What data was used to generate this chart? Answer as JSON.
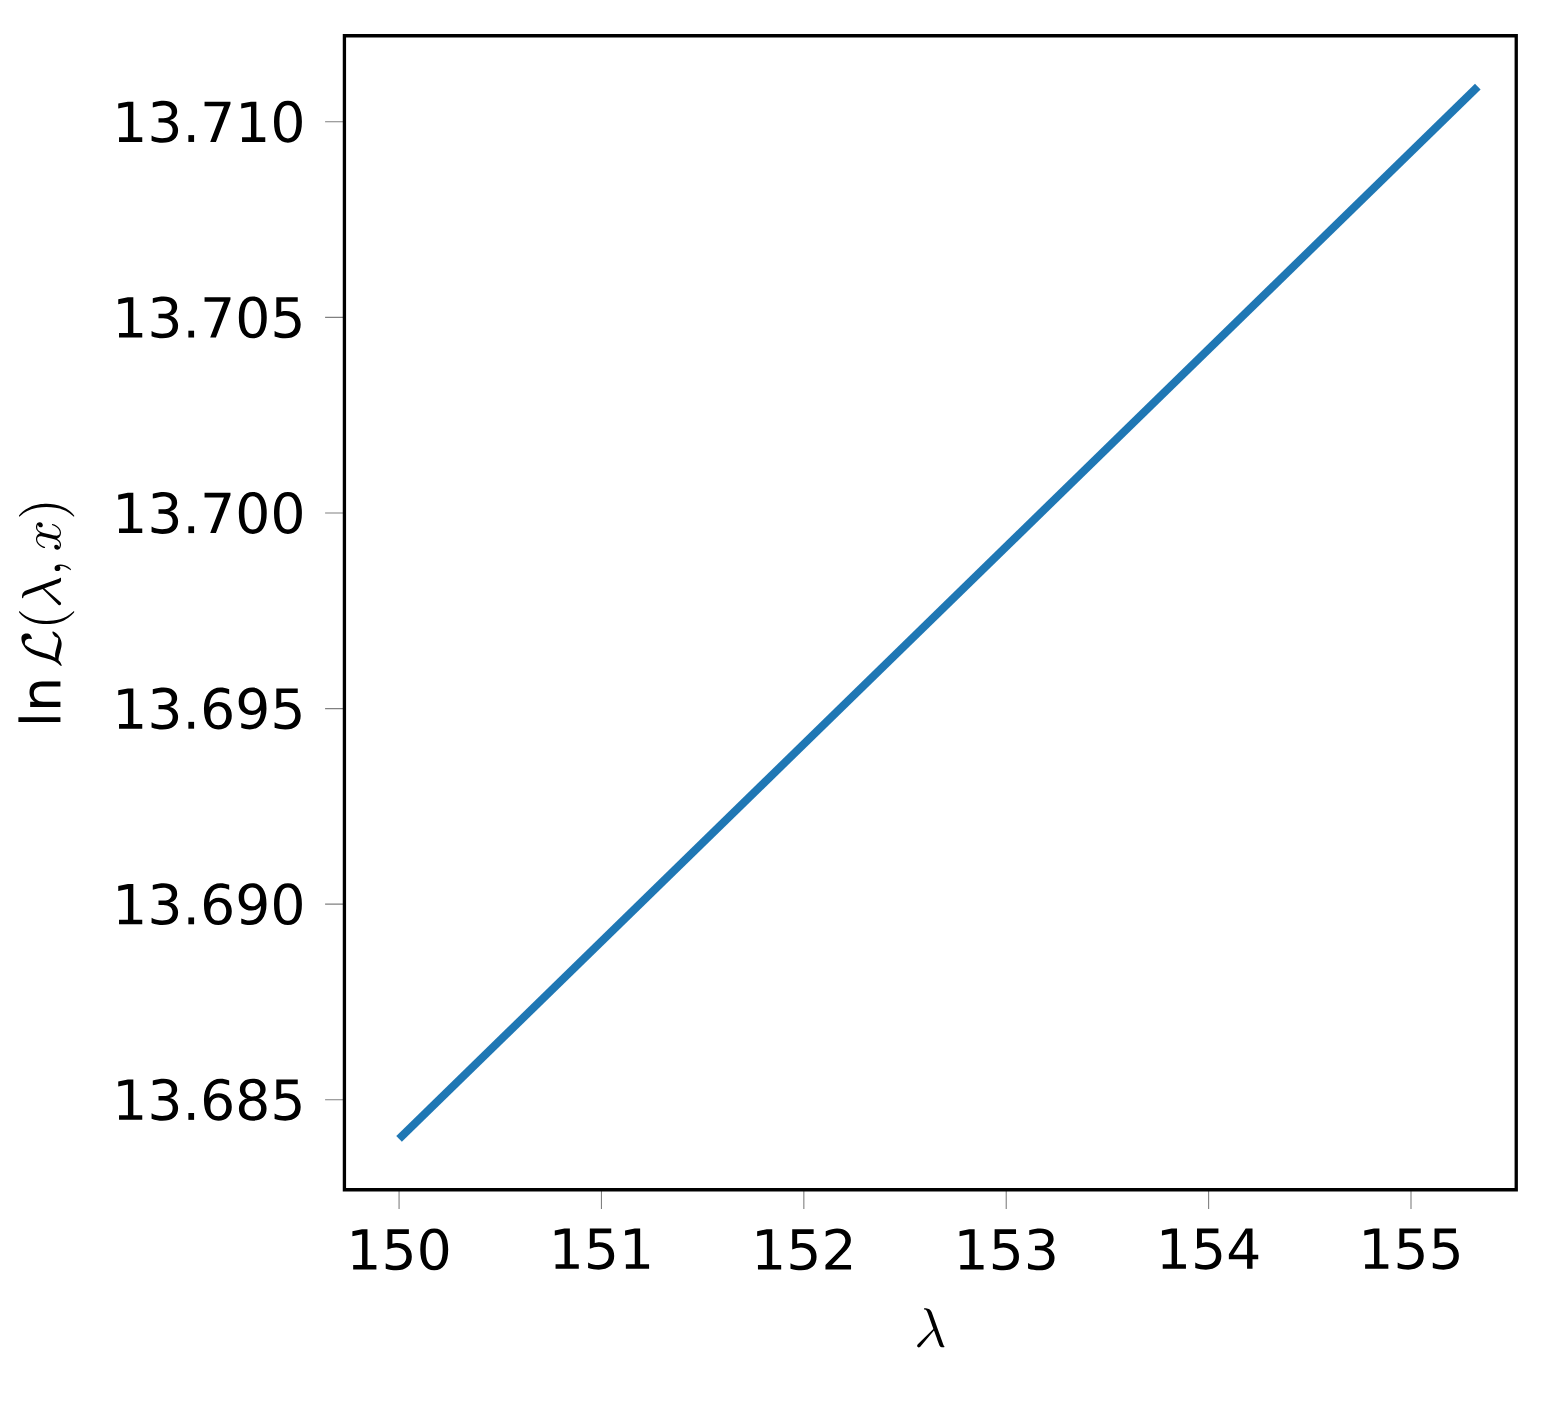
{
  "chart_data": {
    "type": "line",
    "xlabel": "\\lambda",
    "ylabel": "\\ln \\mathcal{L}(\\lambda, x)",
    "x": [
      150,
      155.33
    ],
    "series": [
      {
        "color": "#1f77b4",
        "values": [
          13.684,
          13.7109
        ]
      }
    ],
    "xlim": [
      149.73,
      155.52
    ],
    "ylim": [
      13.6827,
      13.7122
    ],
    "xticks": [
      150,
      151,
      152,
      153,
      154,
      155
    ],
    "yticks": [
      {
        "value": 13.685,
        "label": "13.685"
      },
      {
        "value": 13.69,
        "label": "13.690"
      },
      {
        "value": 13.695,
        "label": "13.695"
      },
      {
        "value": 13.7,
        "label": "13.700"
      },
      {
        "value": 13.705,
        "label": "13.705"
      },
      {
        "value": 13.71,
        "label": "13.710"
      }
    ]
  }
}
